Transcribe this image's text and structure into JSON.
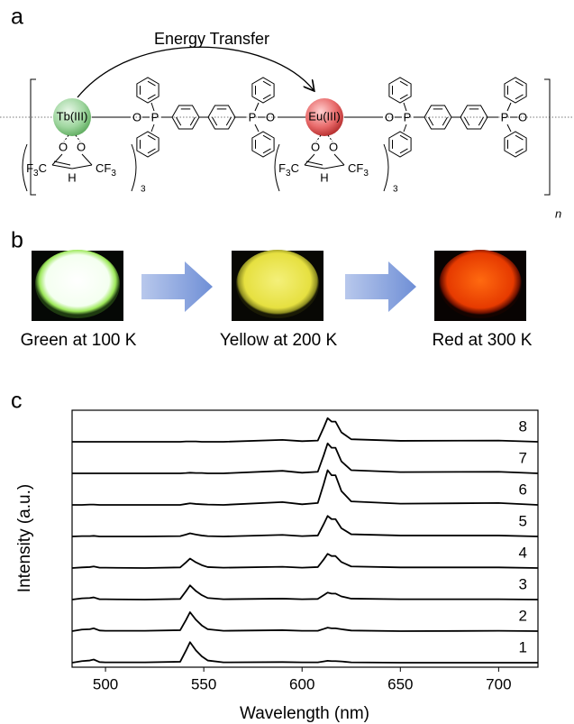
{
  "panel_labels": [
    "a",
    "b",
    "c"
  ],
  "scheme": {
    "energy_transfer": "Energy Transfer",
    "tb": "Tb(III)",
    "eu": "Eu(III)",
    "oxygen": "O",
    "phosphorus": "P",
    "hydrogen": "H",
    "fluorine": "F",
    "carbon": "C",
    "subscript": "3",
    "repeat": "n"
  },
  "photos": [
    {
      "caption": "Green at 100 K"
    },
    {
      "caption": "Yellow at 200 K"
    },
    {
      "caption": "Red at 300 K"
    }
  ],
  "chart_data": {
    "type": "line",
    "xlabel": "Wavelength (nm)",
    "ylabel": "Intensity (a.u.)",
    "xlim": [
      483,
      720
    ],
    "xticks": [
      500,
      550,
      600,
      650,
      700
    ],
    "ylim": [
      0,
      1
    ],
    "color": "#000000",
    "x": [
      483,
      488,
      492,
      494,
      497,
      500,
      520,
      538,
      541,
      543,
      546,
      549,
      552,
      560,
      590,
      600,
      608,
      611,
      613,
      615,
      617,
      620,
      625,
      650,
      700,
      720
    ],
    "series": [
      {
        "name": "1",
        "values": [
          0,
          0.05,
          0.07,
          0.1,
          0.02,
          0.01,
          0.01,
          0.03,
          0.39,
          0.65,
          0.39,
          0.2,
          0.07,
          0.01,
          0.02,
          0.01,
          0.01,
          0.04,
          0.06,
          0.05,
          0.05,
          0.04,
          0.01,
          0,
          0,
          0
        ]
      },
      {
        "name": "2",
        "values": [
          0,
          0.05,
          0.06,
          0.09,
          0.02,
          0.01,
          0.01,
          0.03,
          0.36,
          0.6,
          0.36,
          0.18,
          0.06,
          0.01,
          0.03,
          0.01,
          0.01,
          0.07,
          0.11,
          0.09,
          0.09,
          0.06,
          0.02,
          0,
          0.01,
          0
        ]
      },
      {
        "name": "3",
        "values": [
          0,
          0.04,
          0.05,
          0.07,
          0.01,
          0.01,
          0,
          0.02,
          0.27,
          0.45,
          0.27,
          0.14,
          0.05,
          0.01,
          0.03,
          0.01,
          0.02,
          0.14,
          0.22,
          0.19,
          0.19,
          0.1,
          0.03,
          0.01,
          0.01,
          0
        ]
      },
      {
        "name": "4",
        "values": [
          0,
          0.02,
          0.03,
          0.05,
          0.01,
          0.01,
          0,
          0.02,
          0.18,
          0.3,
          0.18,
          0.09,
          0.03,
          0.01,
          0.04,
          0.01,
          0.03,
          0.27,
          0.45,
          0.38,
          0.38,
          0.19,
          0.05,
          0.02,
          0.02,
          0
        ]
      },
      {
        "name": "5",
        "values": [
          0,
          0.01,
          0.01,
          0.02,
          0,
          0,
          0,
          0.01,
          0.06,
          0.1,
          0.06,
          0.03,
          0.01,
          0,
          0.05,
          0.01,
          0.03,
          0.39,
          0.65,
          0.55,
          0.55,
          0.26,
          0.07,
          0.03,
          0.03,
          0
        ]
      },
      {
        "name": "6",
        "values": [
          0,
          0,
          0.01,
          0.01,
          0,
          0,
          0,
          0,
          0.03,
          0.05,
          0.03,
          0.02,
          0.01,
          0,
          0.09,
          0.02,
          0.06,
          0.66,
          1.1,
          0.94,
          0.94,
          0.44,
          0.11,
          0.04,
          0.06,
          0
        ]
      },
      {
        "name": "7",
        "values": [
          0,
          0,
          0,
          0,
          0,
          0,
          0,
          0,
          0.01,
          0.02,
          0.01,
          0.01,
          0,
          0,
          0.08,
          0.02,
          0.05,
          0.57,
          0.95,
          0.81,
          0.81,
          0.38,
          0.1,
          0.04,
          0.05,
          0
        ]
      },
      {
        "name": "8",
        "values": [
          0,
          0,
          0,
          0,
          0,
          0,
          0,
          0,
          0.01,
          0.01,
          0.01,
          0,
          0,
          0,
          0.06,
          0.02,
          0.04,
          0.45,
          0.75,
          0.64,
          0.64,
          0.3,
          0.08,
          0.03,
          0.04,
          0
        ]
      }
    ]
  }
}
